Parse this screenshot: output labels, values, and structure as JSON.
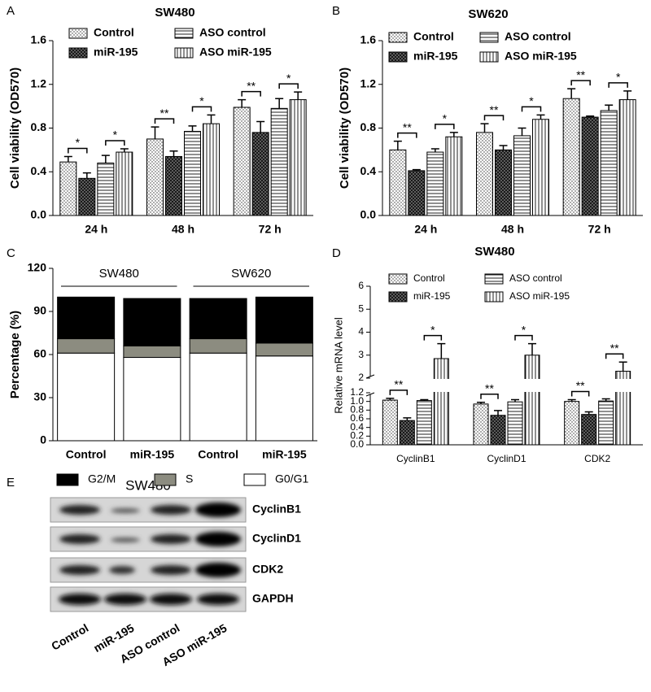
{
  "chart_data": [
    {
      "type": "bar",
      "panel": "A",
      "title": "SW480",
      "ylabel": "Cell viability (OD570)",
      "categories": [
        "24 h",
        "48 h",
        "72 h"
      ],
      "series": [
        {
          "name": "Control",
          "pattern": "dots",
          "values": [
            0.49,
            0.7,
            0.99
          ],
          "errors": [
            0.05,
            0.11,
            0.07
          ]
        },
        {
          "name": "miR-195",
          "pattern": "crosshatch",
          "values": [
            0.34,
            0.54,
            0.76
          ],
          "errors": [
            0.05,
            0.05,
            0.1
          ]
        },
        {
          "name": "ASO control",
          "pattern": "hlines",
          "values": [
            0.48,
            0.77,
            0.98
          ],
          "errors": [
            0.07,
            0.05,
            0.09
          ]
        },
        {
          "name": "ASO miR-195",
          "pattern": "vlines",
          "values": [
            0.58,
            0.84,
            1.06
          ],
          "errors": [
            0.03,
            0.08,
            0.07
          ]
        }
      ],
      "significance": [
        [
          "*",
          "*"
        ],
        [
          "**",
          "*"
        ],
        [
          "**",
          "*"
        ]
      ],
      "ylim": [
        0,
        1.6
      ],
      "yticks": [
        {
          "value": 0,
          "label": "0.0"
        },
        0.4,
        0.8,
        1.2,
        1.6
      ]
    },
    {
      "type": "bar",
      "panel": "B",
      "title": "SW620",
      "ylabel": "Cell viability (OD570)",
      "categories": [
        "24 h",
        "48 h",
        "72 h"
      ],
      "series": [
        {
          "name": "Control",
          "pattern": "dots",
          "values": [
            0.6,
            0.76,
            1.07
          ],
          "errors": [
            0.08,
            0.08,
            0.09
          ]
        },
        {
          "name": "miR-195",
          "pattern": "crosshatch",
          "values": [
            0.41,
            0.6,
            0.9
          ],
          "errors": [
            0.01,
            0.04,
            0.01
          ]
        },
        {
          "name": "ASO control",
          "pattern": "hlines",
          "values": [
            0.58,
            0.73,
            0.96
          ],
          "errors": [
            0.03,
            0.07,
            0.05
          ]
        },
        {
          "name": "ASO miR-195",
          "pattern": "vlines",
          "values": [
            0.72,
            0.88,
            1.06
          ],
          "errors": [
            0.04,
            0.04,
            0.08
          ]
        }
      ],
      "significance": [
        [
          "**",
          "*"
        ],
        [
          "**",
          "*"
        ],
        [
          "**",
          "*"
        ]
      ],
      "ylim": [
        0,
        1.6
      ],
      "yticks": [
        {
          "value": 0,
          "label": "0.0"
        },
        0.4,
        0.8,
        1.2,
        1.6
      ]
    },
    {
      "type": "stacked_bar",
      "panel": "C",
      "ylabel": "Percentage (%)",
      "groups": [
        "SW480",
        "SW620"
      ],
      "categories": [
        "Control",
        "miR-195",
        "Control",
        "miR-195"
      ],
      "series": [
        {
          "name": "G2/M",
          "color": "#000000",
          "values": [
            29,
            33,
            28,
            32
          ]
        },
        {
          "name": "S",
          "color": "#8c8c80",
          "values": [
            10,
            8,
            10,
            9
          ]
        },
        {
          "name": "G0/G1",
          "color": "#ffffff",
          "values": [
            61,
            58,
            61,
            59
          ]
        }
      ],
      "ylim": [
        0,
        120
      ],
      "yticks": [
        0,
        30,
        60,
        90,
        120
      ]
    },
    {
      "type": "bar",
      "panel": "D",
      "title": "SW480",
      "ylabel": "Relative mRNA level",
      "categories": [
        "CyclinB1",
        "CyclinD1",
        "CDK2"
      ],
      "series": [
        {
          "name": "Control",
          "pattern": "dots",
          "values": [
            1.03,
            0.94,
            1.0
          ],
          "errors": [
            0.04,
            0.04,
            0.04
          ]
        },
        {
          "name": "miR-195",
          "pattern": "crosshatch",
          "values": [
            0.56,
            0.68,
            0.7
          ],
          "errors": [
            0.06,
            0.11,
            0.06
          ]
        },
        {
          "name": "ASO control",
          "pattern": "hlines",
          "values": [
            1.02,
            0.99,
            1.01
          ],
          "errors": [
            0.02,
            0.05,
            0.05
          ]
        },
        {
          "name": "ASO miR-195",
          "pattern": "vlines",
          "values": [
            2.85,
            3.0,
            2.3
          ],
          "errors": [
            0.65,
            0.5,
            0.4
          ]
        }
      ],
      "significance": [
        [
          "**",
          "*"
        ],
        [
          "**",
          "*"
        ],
        [
          "**",
          "**"
        ]
      ],
      "ylim": [
        0,
        6
      ],
      "ybreak": [
        1.2,
        2
      ],
      "yticks": [
        {
          "value": 0,
          "label": "0.0"
        },
        0.2,
        0.4,
        0.6,
        0.8,
        {
          "value": 1,
          "label": "1.0"
        },
        1.2,
        2,
        3,
        4,
        5,
        6
      ]
    }
  ],
  "blot": {
    "panel": "E",
    "title": "SW480",
    "rows": [
      "CyclinB1",
      "CyclinD1",
      "CDK2",
      "GAPDH"
    ],
    "lanes": [
      "Control",
      "miR-195",
      "ASO control",
      "ASO miR-195"
    ]
  }
}
